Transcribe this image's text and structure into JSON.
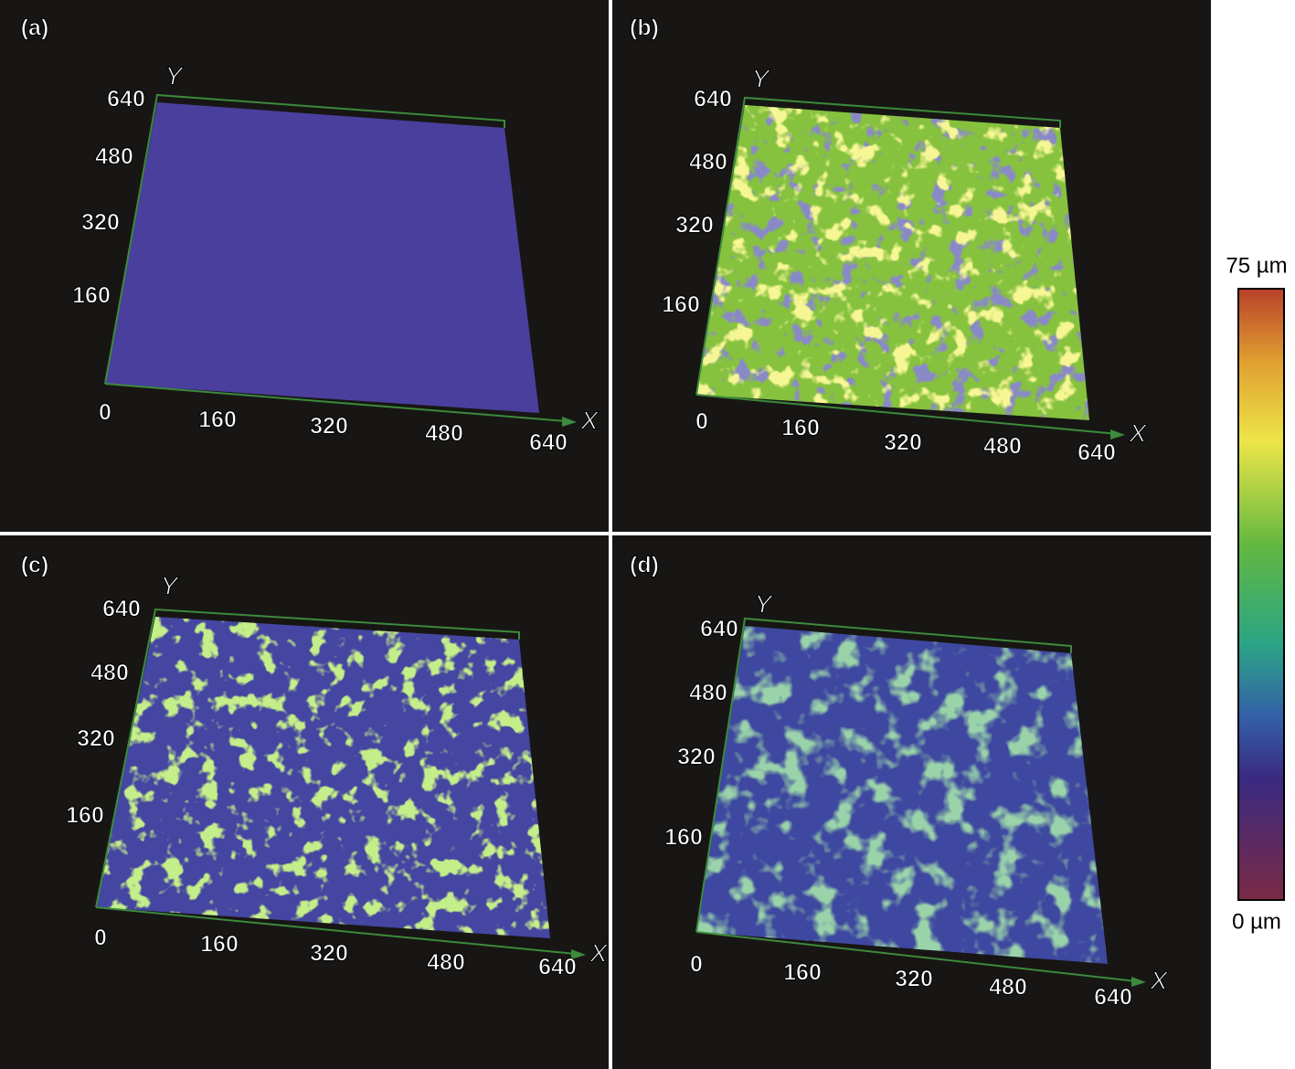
{
  "panels": [
    {
      "label": "(a)",
      "x_axis": "X",
      "y_axis": "Y",
      "x_ticks": [
        0,
        160,
        320,
        480,
        640
      ],
      "y_ticks": [
        160,
        320,
        480,
        640
      ]
    },
    {
      "label": "(b)",
      "x_axis": "X",
      "y_axis": "Y",
      "x_ticks": [
        0,
        160,
        320,
        480,
        640
      ],
      "y_ticks": [
        160,
        320,
        480,
        640
      ]
    },
    {
      "label": "(c)",
      "x_axis": "X",
      "y_axis": "Y",
      "x_ticks": [
        0,
        160,
        320,
        480,
        640
      ],
      "y_ticks": [
        160,
        320,
        480,
        640
      ]
    },
    {
      "label": "(d)",
      "x_axis": "X",
      "y_axis": "Y",
      "x_ticks": [
        0,
        160,
        320,
        480,
        640
      ],
      "y_ticks": [
        160,
        320,
        480,
        640
      ]
    }
  ],
  "colorbar": {
    "max_label": "75 µm",
    "min_label": "0 µm"
  }
}
